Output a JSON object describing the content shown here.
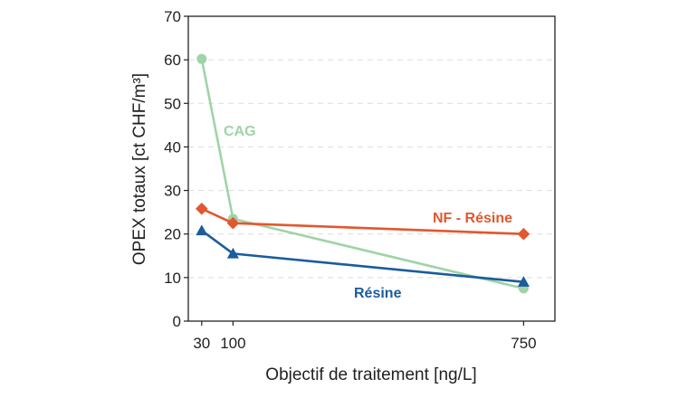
{
  "chart_data": {
    "type": "line",
    "title": "",
    "xlabel": "Objectif de traitement [ng/L]",
    "ylabel": "OPEX totaux [ct CHF/m³]",
    "x": [
      30,
      100,
      750
    ],
    "xticks": [
      30,
      100,
      750
    ],
    "xlim": [
      0,
      820
    ],
    "ylim": [
      0,
      70
    ],
    "yticks": [
      0,
      10,
      20,
      30,
      40,
      50,
      60,
      70
    ],
    "grid": true,
    "legend": "none",
    "series": [
      {
        "name": "CAG",
        "color": "#9fd4a6",
        "marker": "circle",
        "values": [
          60.2,
          23.5,
          7.5
        ]
      },
      {
        "name": "NF - Résine",
        "color": "#e2572e",
        "marker": "diamond",
        "values": [
          25.8,
          22.5,
          20.0
        ]
      },
      {
        "name": "Résine",
        "color": "#1a5c9c",
        "marker": "triangle",
        "values": [
          20.8,
          15.5,
          9.0
        ]
      }
    ]
  }
}
